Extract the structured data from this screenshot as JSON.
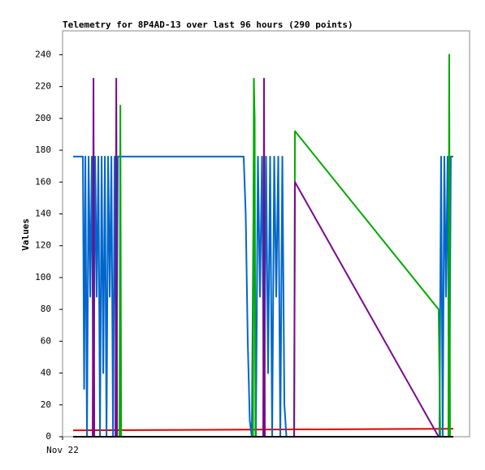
{
  "chart_data": {
    "type": "line",
    "title": "Telemetry for 8P4AD-13 over last 96 hours (290 points)",
    "y_label": "Values",
    "xlim": [
      0,
      100
    ],
    "xticks": [
      {
        "value": 0,
        "label": "Nov 22"
      }
    ],
    "ylim": [
      0,
      255
    ],
    "yticks": [
      0,
      20,
      40,
      60,
      80,
      100,
      120,
      140,
      160,
      180,
      200,
      220,
      240
    ],
    "grid": false,
    "series": [
      {
        "color": "#dd0000",
        "x": [
          2.6,
          96
        ],
        "values": [
          4,
          5
        ]
      },
      {
        "color": "#0066cc",
        "x": [
          2.6,
          5,
          5.3,
          5.6,
          6,
          6.4,
          6.8,
          7.2,
          7.6,
          8,
          8.4,
          8.8,
          9.2,
          9.6,
          10,
          10.4,
          10.8,
          11.2,
          11.6,
          12,
          12.4,
          12.8,
          13.2,
          13.6,
          14,
          44.5,
          45,
          45.5,
          46,
          46.5,
          47,
          47.5,
          48,
          48.5,
          49,
          49.5,
          50,
          50.5,
          51,
          51.5,
          52,
          52.5,
          53,
          53.5,
          54,
          54.5,
          55,
          60,
          92.6,
          93,
          93.4,
          93.8,
          94.2,
          94.6,
          95,
          95.4,
          96
        ],
        "values": [
          176,
          176,
          30,
          176,
          0,
          176,
          88,
          176,
          0,
          176,
          88,
          176,
          0,
          176,
          40,
          176,
          0,
          176,
          88,
          176,
          0,
          176,
          0,
          176,
          176,
          176,
          140,
          60,
          10,
          0,
          176,
          0,
          176,
          88,
          176,
          0,
          176,
          40,
          176,
          0,
          176,
          88,
          176,
          0,
          176,
          20,
          0,
          0,
          0,
          176,
          0,
          176,
          88,
          176,
          0,
          176,
          176
        ]
      },
      {
        "color": "#00aa00",
        "x": [
          2.6,
          14,
          14.2,
          14.4,
          46.8,
          47,
          47.2,
          47.4,
          56.9,
          57.1,
          92.4,
          92.8,
          94.8,
          95,
          95.2,
          96
        ],
        "values": [
          0,
          0,
          208,
          0,
          0,
          225,
          200,
          0,
          0,
          192,
          80,
          0,
          0,
          240,
          0,
          0
        ]
      },
      {
        "color": "#7a0a8c",
        "x": [
          2.6,
          7.4,
          7.6,
          7.8,
          13,
          13.2,
          13.4,
          49.3,
          49.5,
          49.7,
          56.9,
          57.1,
          92.4,
          96
        ],
        "values": [
          0,
          0,
          225,
          0,
          0,
          225,
          0,
          0,
          225,
          0,
          0,
          160,
          0,
          0
        ]
      },
      {
        "color": "#000000",
        "x": [
          2.6,
          96
        ],
        "values": [
          0,
          0
        ]
      }
    ]
  }
}
